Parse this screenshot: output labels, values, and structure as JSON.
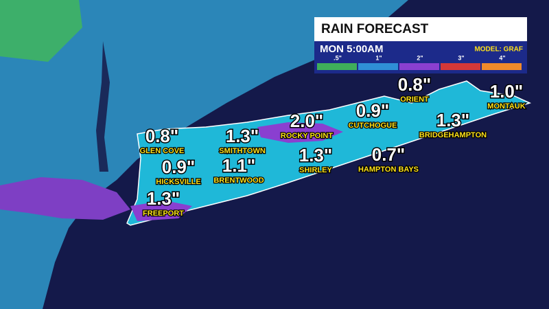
{
  "panel": {
    "title": "RAIN FORECAST",
    "time": "MON 5:00AM",
    "model": "MODEL: GRAF",
    "scale": [
      {
        "label": ".5\"",
        "color": "#3fae5a"
      },
      {
        "label": "1\"",
        "color": "#2f8fd6"
      },
      {
        "label": "2\"",
        "color": "#8a3fd0"
      },
      {
        "label": "3\"",
        "color": "#d43838"
      },
      {
        "label": "4\"",
        "color": "#f08a2a"
      }
    ]
  },
  "cities": [
    {
      "amount": "0.8\"",
      "name": "GLEN COVE"
    },
    {
      "amount": "1.3\"",
      "name": "SMITHTOWN"
    },
    {
      "amount": "2.0\"",
      "name": "ROCKY POINT"
    },
    {
      "amount": "0.9\"",
      "name": "CUTCHOGUE"
    },
    {
      "amount": "0.8\"",
      "name": "ORIENT"
    },
    {
      "amount": "1.0\"",
      "name": "MONTAUK"
    },
    {
      "amount": "1.3\"",
      "name": "BRIDGEHAMPTON"
    },
    {
      "amount": "0.9\"",
      "name": "HICKSVILLE"
    },
    {
      "amount": "1.1\"",
      "name": "BRENTWOOD"
    },
    {
      "amount": "1.3\"",
      "name": "SHIRLEY"
    },
    {
      "amount": "0.7\"",
      "name": "HAMPTON BAYS"
    },
    {
      "amount": "1.3\"",
      "name": "FREEPORT"
    }
  ]
}
